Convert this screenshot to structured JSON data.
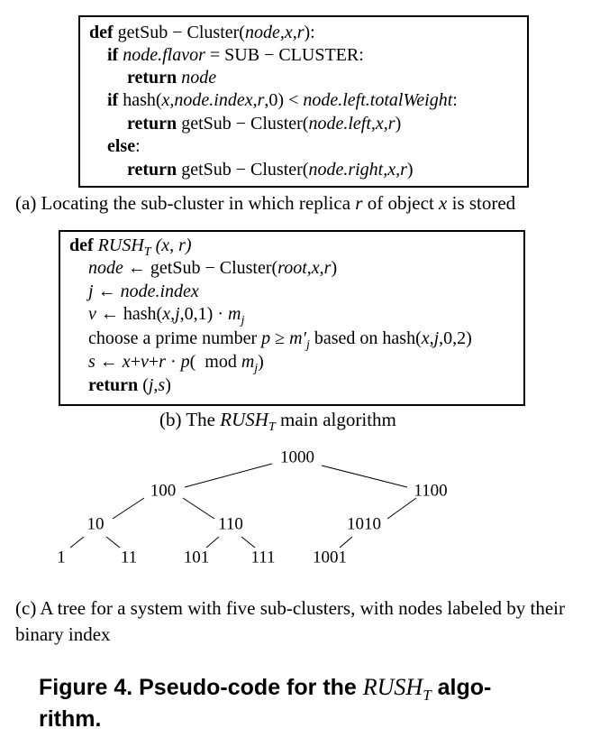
{
  "panel_a": {
    "lines": [
      [
        "def",
        " getSub − Cluster(",
        "node,x,r",
        "):"
      ],
      [
        "if",
        " ",
        "node.flavor",
        " = SUB − CLUSTER:"
      ],
      [
        "return",
        " ",
        "node"
      ],
      [
        "if",
        " hash(",
        "x,node.index,r",
        ",0) < ",
        "node.left.totalWeight",
        ":"
      ],
      [
        "return",
        " getSub − Cluster(",
        "node.left,x,r",
        ")"
      ],
      [
        "else",
        ":"
      ],
      [
        "return",
        " getSub − Cluster(",
        "node.right,x,r",
        ")"
      ]
    ],
    "caption": [
      "(a) Locating the sub-cluster in which replica ",
      "r",
      " of object ",
      "x",
      " is stored"
    ]
  },
  "panel_b": {
    "lines": [
      [
        "def",
        " ",
        "RUSH",
        "T",
        " (x, r)"
      ],
      [
        "node",
        " ← getSub − Cluster(",
        "root,x,r",
        ")"
      ],
      [
        "j",
        " ← ",
        "node.index"
      ],
      [
        "v",
        " ← hash(",
        "x,j",
        ",0,1) · ",
        "m",
        "j"
      ],
      [
        "choose a prime number ",
        "p",
        " ≥ ",
        "m′",
        "j",
        " based on hash(",
        "x,j",
        ",0,2)"
      ],
      [
        "s",
        " ← ",
        "x",
        "+",
        "v",
        "+",
        "r",
        " · ",
        "p",
        "(  mod ",
        "m",
        "j",
        ")"
      ],
      [
        "return",
        " (",
        "j,s",
        ")"
      ]
    ],
    "caption": [
      "(b) The ",
      "RUSH",
      "T",
      " main algorithm"
    ]
  },
  "tree": {
    "nodes": [
      "1000",
      "100",
      "1100",
      "10",
      "110",
      "1010",
      "1",
      "11",
      "101",
      "111",
      "1001"
    ]
  },
  "panel_c": {
    "caption": "(c) A tree for a system with five sub-clusters, with nodes labeled by their binary index"
  },
  "figure_caption": [
    "Figure 4. Pseudo-code for the ",
    "RUSH",
    "T",
    " algo-",
    "rithm."
  ]
}
